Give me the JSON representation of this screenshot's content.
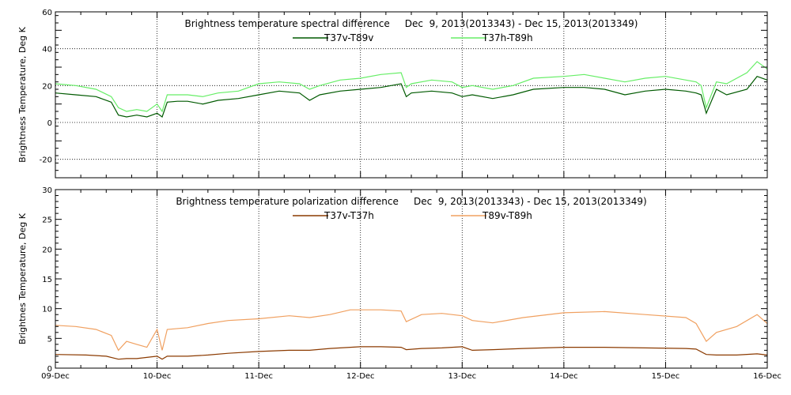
{
  "chart_data": [
    {
      "type": "line",
      "title": "Brightness temperature spectral difference     Dec  9, 2013(2013343) - Dec 15, 2013(2013349)",
      "ylabel": "Brightness Temperature, Deg K",
      "ylim": [
        -30,
        60
      ],
      "yticks": [
        -20,
        0,
        20,
        40,
        60
      ],
      "xlim": [
        0,
        7
      ],
      "xticks": [
        0,
        1,
        2,
        3,
        4,
        5,
        6,
        7
      ],
      "xtick_labels": [],
      "grid": "vertical dotted at day boundaries; horizontal dotted at every labeled y tick",
      "legend": "top-center",
      "series": [
        {
          "name": "T37v-T89v",
          "color": "#005a00",
          "x": [
            0,
            0.2,
            0.4,
            0.55,
            0.62,
            0.7,
            0.8,
            0.9,
            1.0,
            1.05,
            1.1,
            1.2,
            1.3,
            1.45,
            1.6,
            1.8,
            2.0,
            2.2,
            2.4,
            2.5,
            2.6,
            2.8,
            3.0,
            3.2,
            3.4,
            3.45,
            3.5,
            3.7,
            3.9,
            4.0,
            4.1,
            4.3,
            4.5,
            4.7,
            5.0,
            5.2,
            5.4,
            5.6,
            5.8,
            6.0,
            6.2,
            6.3,
            6.35,
            6.4,
            6.5,
            6.6,
            6.8,
            6.9,
            7.0
          ],
          "y": [
            16,
            15,
            14,
            11,
            4,
            3,
            4,
            3,
            5,
            3,
            11,
            11.5,
            11.5,
            10,
            12,
            13,
            15,
            17,
            16,
            12,
            15,
            17,
            18,
            19,
            21,
            14,
            16,
            17,
            16,
            14,
            15,
            13,
            15,
            18,
            19,
            19,
            18,
            15,
            17,
            18,
            17,
            16,
            15,
            5,
            18,
            15,
            18,
            25,
            23
          ]
        },
        {
          "name": "T37h-T89h",
          "color": "#66ee66",
          "x": [
            0,
            0.2,
            0.4,
            0.55,
            0.62,
            0.7,
            0.8,
            0.9,
            1.0,
            1.05,
            1.1,
            1.2,
            1.3,
            1.45,
            1.6,
            1.8,
            2.0,
            2.2,
            2.4,
            2.5,
            2.6,
            2.8,
            3.0,
            3.2,
            3.4,
            3.45,
            3.5,
            3.7,
            3.9,
            4.0,
            4.1,
            4.3,
            4.5,
            4.7,
            5.0,
            5.2,
            5.4,
            5.6,
            5.8,
            6.0,
            6.2,
            6.3,
            6.35,
            6.4,
            6.5,
            6.6,
            6.8,
            6.9,
            7.0
          ],
          "y": [
            21,
            20,
            18,
            14,
            8,
            6,
            7,
            6,
            10,
            6,
            15,
            15,
            15,
            14,
            16,
            17,
            21,
            22,
            21,
            18,
            20,
            23,
            24,
            26,
            27,
            19,
            21,
            23,
            22,
            19,
            20,
            18,
            20,
            24,
            25,
            26,
            24,
            22,
            24,
            25,
            23,
            22,
            20,
            8,
            22,
            21,
            27,
            33,
            29
          ]
        }
      ]
    },
    {
      "type": "line",
      "title": "Brightness temperature polarization difference     Dec  9, 2013(2013343) - Dec 15, 2013(2013349)",
      "ylabel": "Brightnes Temperature, Deg K",
      "ylim": [
        0,
        30
      ],
      "yticks": [
        0,
        5,
        10,
        15,
        20,
        25,
        30
      ],
      "xlim": [
        0,
        7
      ],
      "xticks": [
        0,
        1,
        2,
        3,
        4,
        5,
        6,
        7
      ],
      "xtick_labels": [
        "09-Dec",
        "10-Dec",
        "11-Dec",
        "12-Dec",
        "13-Dec",
        "14-Dec",
        "15-Dec",
        "16-Dec"
      ],
      "grid": "vertical dotted at day boundaries",
      "legend": "top-center",
      "series": [
        {
          "name": "T37v-T37h",
          "color": "#8b3a00",
          "x": [
            0,
            0.3,
            0.5,
            0.62,
            0.7,
            0.8,
            0.9,
            1.0,
            1.05,
            1.1,
            1.3,
            1.5,
            1.7,
            2.0,
            2.3,
            2.5,
            2.7,
            2.9,
            3.0,
            3.2,
            3.4,
            3.45,
            3.6,
            3.8,
            4.0,
            4.1,
            4.3,
            4.6,
            5.0,
            5.4,
            5.8,
            6.2,
            6.3,
            6.4,
            6.5,
            6.7,
            6.9,
            7.0
          ],
          "y": [
            2.3,
            2.2,
            2.0,
            1.5,
            1.6,
            1.6,
            1.8,
            2.0,
            1.5,
            2.0,
            2.0,
            2.2,
            2.5,
            2.8,
            3.0,
            3.0,
            3.3,
            3.5,
            3.6,
            3.6,
            3.5,
            3.1,
            3.3,
            3.4,
            3.6,
            3.0,
            3.1,
            3.3,
            3.5,
            3.5,
            3.4,
            3.3,
            3.2,
            2.3,
            2.2,
            2.2,
            2.4,
            2.2
          ]
        },
        {
          "name": "T89v-T89h",
          "color": "#f0a060",
          "x": [
            0,
            0.2,
            0.4,
            0.55,
            0.62,
            0.7,
            0.8,
            0.9,
            1.0,
            1.05,
            1.1,
            1.3,
            1.5,
            1.7,
            2.0,
            2.3,
            2.5,
            2.7,
            2.9,
            3.0,
            3.2,
            3.4,
            3.45,
            3.6,
            3.8,
            4.0,
            4.1,
            4.3,
            4.6,
            5.0,
            5.4,
            5.8,
            6.2,
            6.3,
            6.4,
            6.5,
            6.7,
            6.9,
            7.0
          ],
          "y": [
            7.2,
            7.0,
            6.5,
            5.5,
            3.0,
            4.5,
            4.0,
            3.5,
            6.5,
            3.0,
            6.5,
            6.8,
            7.5,
            8.0,
            8.3,
            8.8,
            8.5,
            9.0,
            9.8,
            9.8,
            9.8,
            9.6,
            7.8,
            9.0,
            9.2,
            8.8,
            8.0,
            7.6,
            8.5,
            9.3,
            9.5,
            9.0,
            8.5,
            7.5,
            4.5,
            6.0,
            7.0,
            9.0,
            7.5
          ]
        }
      ]
    }
  ]
}
